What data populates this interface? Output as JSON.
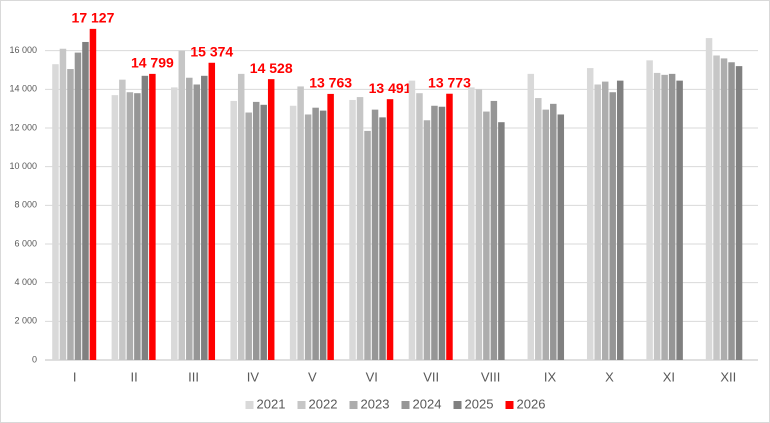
{
  "chart_data": {
    "type": "bar",
    "categories": [
      "I",
      "II",
      "III",
      "IV",
      "V",
      "VI",
      "VII",
      "VIII",
      "IX",
      "X",
      "XI",
      "XII"
    ],
    "series": [
      {
        "name": "2021",
        "color": "#d9d9d9",
        "values": [
          15300,
          13700,
          14100,
          13400,
          13150,
          13450,
          14450,
          14100,
          14800,
          15100,
          15500,
          16650
        ]
      },
      {
        "name": "2022",
        "color": "#c6c6c6",
        "values": [
          16100,
          14500,
          16000,
          14800,
          14150,
          13600,
          13800,
          14000,
          13550,
          14250,
          14850,
          15750
        ]
      },
      {
        "name": "2023",
        "color": "#adadad",
        "values": [
          15050,
          13850,
          14600,
          12800,
          12700,
          11850,
          12400,
          12850,
          12950,
          14400,
          14750,
          15600
        ]
      },
      {
        "name": "2024",
        "color": "#969696",
        "values": [
          15900,
          13800,
          14250,
          13350,
          13050,
          12950,
          13150,
          13400,
          13250,
          13850,
          14800,
          15400
        ]
      },
      {
        "name": "2025",
        "color": "#808080",
        "values": [
          16450,
          14700,
          14700,
          13200,
          12900,
          12550,
          13100,
          12300,
          12700,
          14450,
          14450,
          15200
        ]
      },
      {
        "name": "2026",
        "color": "#ff0000",
        "values": [
          17127,
          14799,
          15374,
          14528,
          13763,
          13491,
          13773,
          null,
          null,
          null,
          null,
          null
        ],
        "value_labels": [
          "17 127",
          "14 799",
          "15 374",
          "14 528",
          "13 763",
          "13 491",
          "13 773",
          null,
          null,
          null,
          null,
          null
        ]
      }
    ],
    "ylim": [
      0,
      18000
    ],
    "yticks": [
      0,
      {
        "value": 2000,
        "label": "2 000"
      },
      {
        "value": 4000,
        "label": "4 000"
      },
      {
        "value": 6000,
        "label": "6 000"
      },
      {
        "value": 8000,
        "label": "8 000"
      },
      {
        "value": 10000,
        "label": "10 000"
      },
      {
        "value": 12000,
        "label": "12 000"
      },
      {
        "value": 14000,
        "label": "14 000"
      },
      {
        "value": 16000,
        "label": "16 000"
      }
    ],
    "grid": true,
    "legend": "bottom"
  }
}
